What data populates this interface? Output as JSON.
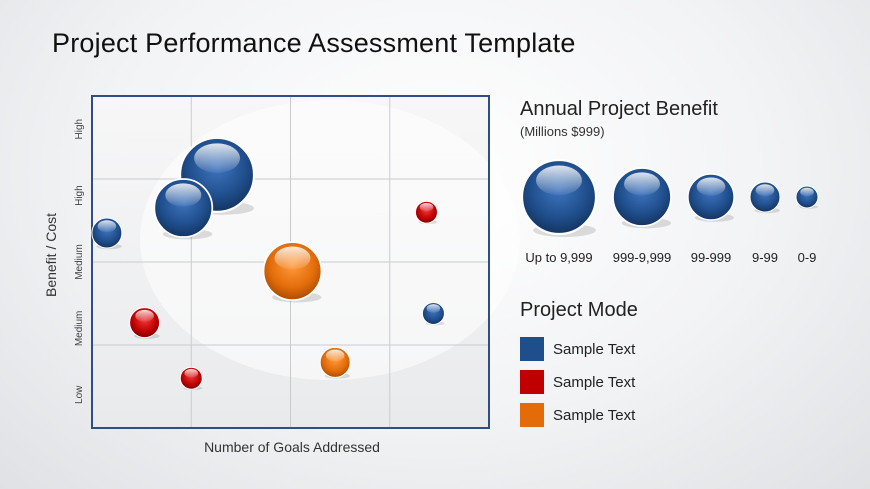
{
  "title": "Project Performance Assessment Template",
  "colors": {
    "blue": "#1f4e8c",
    "red": "#c00000",
    "orange": "#e36c09",
    "frame": "#2e4f86"
  },
  "chart_data": {
    "type": "scatter",
    "subtype": "bubble",
    "xlabel": "Number of Goals Addressed",
    "ylabel": "Benefit / Cost",
    "xlim": [
      0,
      4
    ],
    "ylim": [
      0,
      4
    ],
    "y_tick_labels": [
      "Low",
      "Medium",
      "Medium",
      "High",
      "High"
    ],
    "grid": true,
    "series": [
      {
        "color": "blue",
        "points": [
          {
            "x": 0.15,
            "y": 2.35,
            "size_class": "9-99"
          },
          {
            "x": 0.92,
            "y": 2.65,
            "size_class": "999-9,999"
          },
          {
            "x": 1.26,
            "y": 3.05,
            "size_class": "Up to 9,999"
          },
          {
            "x": 3.44,
            "y": 1.38,
            "size_class": "0-9"
          }
        ]
      },
      {
        "color": "red",
        "points": [
          {
            "x": 3.37,
            "y": 2.6,
            "size_class": "0-9"
          },
          {
            "x": 0.53,
            "y": 1.27,
            "size_class": "9-99"
          },
          {
            "x": 1.0,
            "y": 0.6,
            "size_class": "0-9"
          }
        ]
      },
      {
        "color": "orange",
        "points": [
          {
            "x": 2.02,
            "y": 1.89,
            "size_class": "999-9,999"
          },
          {
            "x": 2.45,
            "y": 0.79,
            "size_class": "9-99"
          }
        ]
      }
    ]
  },
  "benefit_legend": {
    "title": "Annual Project Benefit",
    "subtitle": "(Millions $999)",
    "items": [
      {
        "label": "Up to 9,999"
      },
      {
        "label": "999-9,999"
      },
      {
        "label": "99-999"
      },
      {
        "label": "9-99"
      },
      {
        "label": "0-9"
      }
    ]
  },
  "mode_legend": {
    "title": "Project Mode",
    "items": [
      {
        "label": "Sample Text",
        "color": "blue"
      },
      {
        "label": "Sample Text",
        "color": "red"
      },
      {
        "label": "Sample Text",
        "color": "orange"
      }
    ]
  }
}
